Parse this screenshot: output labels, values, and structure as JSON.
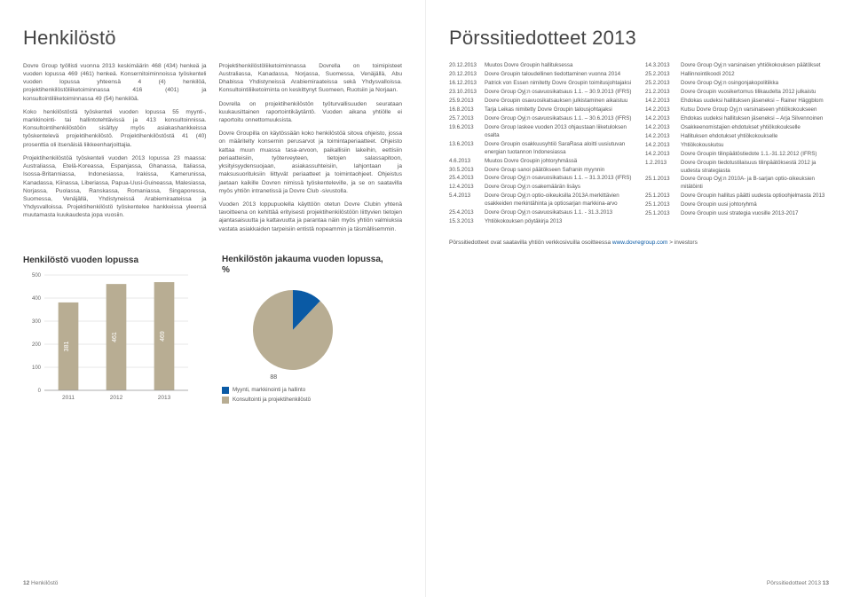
{
  "left": {
    "title": "Henkilöstö",
    "body": [
      "Dovre Group työllisti vuonna 2013 keskimäärin 468 (434) henkeä ja vuoden lopussa 469 (461) henkeä. Konsernitoiminnoissa työskenteli vuoden lopussa yhteensä 4 (4) henkilöä, projektihenkilöstöliiketoiminnassa 416 (401) ja konsultointiliiketoiminnassa 49 (54) henkilöä.",
      "Koko henkilöstöstä työskenteli vuoden lopussa 55 myynti-, markkinointi- tai hallintotehtävissä ja 413 konsultoinnissa. Konsultointihenkilöstöön sisältyy myös asiakashankkeissa työskentelevä projektihenkilöstö. Projektihenkilöstöstä 41 (40) prosenttia oli itsenäisiä liikkeenharjoittajia.",
      "Projektihenkilöstöä työskenteli vuoden 2013 lopussa 23 maassa: Australiassa, Etelä-Koreassa, Espanjassa, Ghanassa, Italiassa, Isossa-Britanniassa, Indonesiassa, Irakissa, Kamerunissa, Kanadassa, Kiinassa, Liberiassa, Papua-Uusi-Guineassa, Malesiassa, Norjassa, Puolassa, Ranskassa, Romaniassa, Singaporessa, Suomessa, Venäjällä, Yhdistyneissä Arabiemiraateissa ja Yhdysvalloissa. Projektihenkilöstö työskentelee hankkeissa yleensä muutamasta kuukaudesta jopa vuosiin.",
      "Projektihenkilöstöliiketoiminnassa Dovrella on toimipisteet Australiassa, Kanadassa, Norjassa, Suomessa, Venäjällä, Abu Dhabissa Yhdistyneissä Arabiemiraateissa sekä Yhdysvalloissa. Konsultointiliiketoiminta on keskittynyt Suomeen, Ruotsiin ja Norjaan.",
      "Dovrella on projektihenkilöstön työturvallisuuden seurataan kuukausittainen raportointikäytäntö. Vuoden aikana yhtiölle ei raportoitu onnettomuuksista.",
      "Dovre Groupilla on käytössään koko henkilöstöä sitova ohjeisto, jossa on määritelty konsernin perusarvot ja toimintaperiaatteet. Ohjeisto kattaa muun muassa tasa-arvoon, paikallisiin lakeihin, eettisiin periaatteisiin, työterveyteen, tietojen salassapitoon, yksityisyydensuojaan, asiakassuhteisiin, lahjontaan ja maksusuorituksiin liittyvät periaatteet ja toimintaohjeet. Ohjeistus jaetaan kaikille Dovren nimissä työskenteleville, ja se on saatavilla myös yhtiön intranetissä ja Dovre Club -sivustolla.",
      "Vuoden 2013 loppupuolella käyttöön otetun Dovre Clubin yhtenä tavoitteena on kehittää erityisesti projektihenkilöstöön liittyvien tietojen ajantasaisuutta ja kattavuutta ja parantaa näin myös yhtiön valmiuksia vastata asiakkaiden tarpeisiin entistä nopeammin ja täsmällisemmin."
    ],
    "bar_chart": {
      "title": "Henkilöstö vuoden lopussa",
      "categories": [
        "2011",
        "2012",
        "2013"
      ],
      "values": [
        381,
        461,
        469
      ],
      "bar_fill": "#b8ad93",
      "bar_text_color": "#ffffff",
      "grid_color": "#d0d0d0",
      "axis_color": "#999999",
      "label_color": "#666666",
      "value_label_color": "#ffffff",
      "ymax": 500,
      "ytick_step": 100,
      "bar_width": 0.42
    },
    "pie_chart": {
      "title": "Henkilöstön jakauma vuoden lopussa, %",
      "slices": [
        {
          "label": "Myynti, markkinointi ja hallinto",
          "value": 12,
          "color": "#0a5aa5"
        },
        {
          "label": "Konsultointi ja projektihenkilöstö",
          "value": 88,
          "color": "#b8ad93"
        }
      ],
      "label_color": "#555555"
    },
    "footer_pagenum": "12",
    "footer_label": "Henkilöstö"
  },
  "right": {
    "title": "Pörssitiedotteet 2013",
    "col1": [
      {
        "date": "20.12.2013",
        "text": "Muutos Dovre Groupin hallituksessa"
      },
      {
        "date": "20.12.2013",
        "text": "Dovre Groupin taloudellinen tiedottaminen vuonna 2014"
      },
      {
        "date": "16.12.2013",
        "text": "Patrick von Essen nimitetty Dovre Groupin toimitusjohtajaksi"
      },
      {
        "date": "23.10.2013",
        "text": "Dovre Group Oyj:n osavuosikatsaus 1.1. – 30.9.2013 (IFRS)"
      },
      {
        "date": "25.9.2013",
        "text": "Dovre Groupin osavuosikatsauksen julkistaminen aikaistuu"
      },
      {
        "date": "16.8.2013",
        "text": "Tarja Leikas nimitetty Dovre Groupin talousjohtajaksi"
      },
      {
        "date": "25.7.2013",
        "text": "Dovre Group Oyj:n osavuosikatsaus 1.1. – 30.6.2013 (IFRS)"
      },
      {
        "date": "19.6.2013",
        "text": "Dovre Group laskee vuoden 2013 ohjaustaan liiketuloksen osalta"
      },
      {
        "date": "13.6.2013",
        "text": "Dovre Groupin osakkuusyhtiö SaraRasa aloitti uusiutuvan energian tuotannon Indonesiassa"
      },
      {
        "date": "4.6.2013",
        "text": "Muutos Dovre Groupin johtoryhmässä"
      },
      {
        "date": "30.5.2013",
        "text": "Dovre Group sanoi päätökseen Safranin myynnin"
      },
      {
        "date": "25.4.2013",
        "text": "Dovre Group Oyj:n osavuosikatsaus 1.1. – 31.3.2013 (IFRS)"
      },
      {
        "date": "12.4.2013",
        "text": "Dovre Group Oyj:n osakemäärän lisäys"
      },
      {
        "date": "5.4.2013",
        "text": "Dovre Group Oyj:n optio-oikeuksilla 2013A merkittävien osakkeiden merkintähinta ja optiosarjan markkina-arvo"
      },
      {
        "date": "25.4.2013",
        "text": "Dovre Group Oyj:n osavuosikatsaus 1.1. - 31.3.2013"
      },
      {
        "date": "15.3.2013",
        "text": "Yhtiökokouksen pöytäkirja 2013"
      }
    ],
    "col2": [
      {
        "date": "14.3.2013",
        "text": "Dovre Group Oyj:n varsinaisen yhtiökokouksen päätökset"
      },
      {
        "date": "25.2.2013",
        "text": "Hallinnointikoodi 2012"
      },
      {
        "date": "25.2.2013",
        "text": "Dovre Group Oyj:n osingonjakopolitiikka"
      },
      {
        "date": "21.2.2013",
        "text": "Dovre Groupin vuosikertomus tilikaudelta 2012 julkaistu"
      },
      {
        "date": "14.2.2013",
        "text": "Ehdokas uudeksi hallituksen jäseneksi – Rainer Häggblom"
      },
      {
        "date": "14.2.2013",
        "text": "Kutsu Dovre Group Oyj:n varsinaiseen yhtiökokoukseen"
      },
      {
        "date": "14.2.2013",
        "text": "Ehdokas uudeksi hallituksen jäseneksi – Arja Silvennoinen"
      },
      {
        "date": "14.2.2013",
        "text": "Osakkeenomistajien ehdotukset yhtiökokoukselle"
      },
      {
        "date": "14.2.2013",
        "text": "Hallituksen ehdotukset yhtiökokoukselle"
      },
      {
        "date": "14.2.2013",
        "text": "Yhtiökokouskutsu"
      },
      {
        "date": "14.2.2013",
        "text": "Dovre Groupin tilinpäätöstiedote 1.1.-31.12.2012 (IFRS)"
      },
      {
        "date": "1.2.2013",
        "text": "Dovre Groupin tiedotustilaisuus tilinpäätöksestä 2012 ja uudesta strategiasta"
      },
      {
        "date": "25.1.2013",
        "text": "Dovre Group Oyj:n 2010A- ja B-sarjan optio-oikeuksien mitätöinti"
      },
      {
        "date": "25.1.2013",
        "text": "Dovre Groupin hallitus päätti uudesta optioohjelmasta 2013"
      },
      {
        "date": "25.1.2013",
        "text": "Dovre Groupin uusi johtoryhmä"
      },
      {
        "date": "25.1.2013",
        "text": "Dovre Groupin uusi strategia vuosille 2013-2017"
      }
    ],
    "note_prefix": "Pörssitiedotteet ovat saatavilla yhtiön verkkosivuilla osoitteessa ",
    "note_link": "www.dovregroup.com",
    "note_suffix": " > investors",
    "footer_label": "Pörssitiedotteet 2013",
    "footer_pagenum": "13"
  }
}
